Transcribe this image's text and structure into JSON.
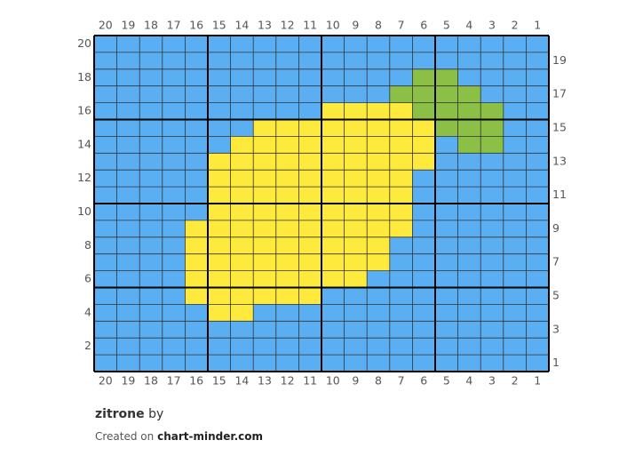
{
  "title": "zitrone",
  "by": "by",
  "credit_prefix": "Created on",
  "credit_site": "chart-minder.com",
  "columns": [
    20,
    19,
    18,
    17,
    16,
    15,
    14,
    13,
    12,
    11,
    10,
    9,
    8,
    7,
    6,
    5,
    4,
    3,
    2,
    1
  ],
  "row_numbers": [
    20,
    19,
    18,
    17,
    16,
    15,
    14,
    13,
    12,
    11,
    10,
    9,
    8,
    7,
    6,
    5,
    4,
    3,
    2,
    1
  ],
  "palette": {
    "B": "#5aaef2",
    "Y": "#fdea3c",
    "G": "#8bbf46"
  },
  "rows": [
    "BBBBBBBBBBBBBBBBBBBB",
    "BBBBBBBBBBBBBBBBBBBB",
    "BBBBBBBBBBBBBBGGBBBB",
    "BBBBBBBBBBBBBGGGGBBB",
    "BBBBBBBBBBYYYYGGGGBB",
    "BBBBBBBYYYYYYYYGGGBB",
    "BBBBBBYYYYYYYYYBGGBB",
    "BBBBBYYYYYYYYYYBBBBB",
    "BBBBBYYYYYYYYYBBBBBB",
    "BBBBBYYYYYYYYYBBBBBB",
    "BBBBBYYYYYYYYYBBBBBB",
    "BBBBYYYYYYYYYYBBBBBB",
    "BBBBYYYYYYYYYBBBBBBB",
    "BBBBYYYYYYYYYBBBBBBB",
    "BBBBYYYYYYYYBBBBBBBB",
    "BBBBYYYYYYBBBBBBBBBB",
    "BBBBBYYBBBBBBBBBBBBB",
    "BBBBBBBBBBBBBBBBBBBB",
    "BBBBBBBBBBBBBBBBBBBB",
    "BBBBBBBBBBBBBBBBBBBB"
  ]
}
